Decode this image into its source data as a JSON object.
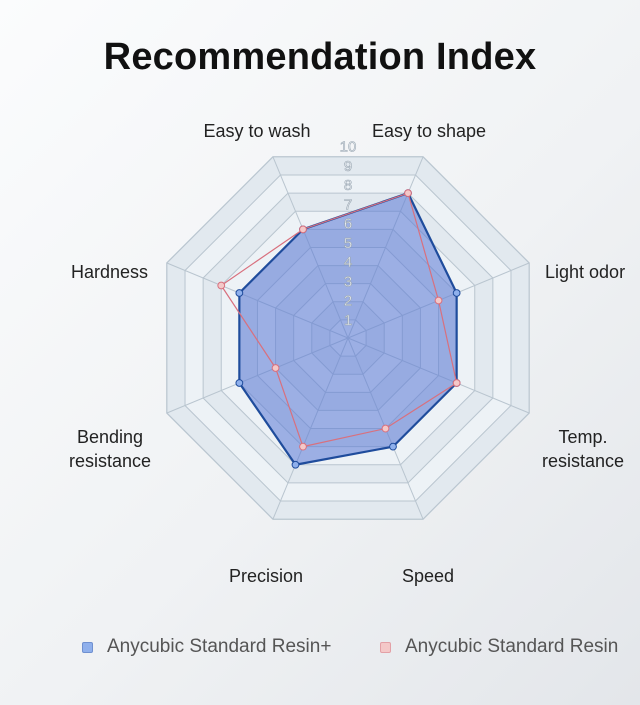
{
  "title": "Recommendation Index",
  "chart_data": {
    "type": "radar",
    "title": "Recommendation Index",
    "categories": [
      "Easy to wash",
      "Easy to shape",
      "Light odor",
      "Temp.\nresistance",
      "Speed",
      "Precision",
      "Bending\nresistance",
      "Hardness"
    ],
    "rlim": [
      0,
      10
    ],
    "tick_labels": [
      "1",
      "2",
      "3",
      "4",
      "5",
      "6",
      "7",
      "8",
      "9",
      "10"
    ],
    "grid": true,
    "series": [
      {
        "name": "Anycubic Standard Resin+",
        "values": [
          6,
          8,
          6,
          6,
          6,
          7,
          6,
          6
        ],
        "color": "#1f4c9c",
        "fill": "#5a78d6",
        "marker_fill": "#8fb0ec"
      },
      {
        "name": "Anycubic Standard Resin",
        "values": [
          6,
          8,
          5,
          6,
          5,
          6,
          4,
          7
        ],
        "color": "#d8707e",
        "fill": "none",
        "marker_fill": "#f4c8c8"
      }
    ],
    "legend": "bottom"
  }
}
